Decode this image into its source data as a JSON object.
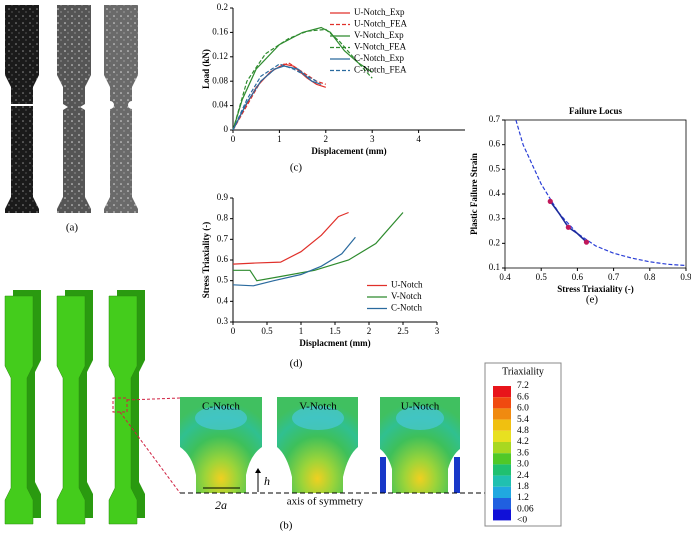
{
  "chart_data": [
    {
      "type": "line",
      "xlabel": "Displacement (mm)",
      "ylabel": "Load (kN)",
      "xlim": [
        0,
        5
      ],
      "xticks": [
        0,
        1,
        2,
        3,
        4
      ],
      "ylim": [
        0,
        0.2
      ],
      "yticks": [
        0,
        0.04,
        0.08,
        0.12,
        0.16,
        0.2
      ],
      "legend": "upper right",
      "series": [
        {
          "name": "U-Notch_Exp",
          "color": "#e0302a",
          "style": "solid",
          "x": [
            0,
            0.2,
            0.5,
            0.8,
            1.1,
            1.3,
            1.6,
            1.8,
            2.0
          ],
          "values": [
            0,
            0.03,
            0.07,
            0.095,
            0.108,
            0.105,
            0.085,
            0.075,
            0.07
          ]
        },
        {
          "name": "U-Notch_FEA",
          "color": "#e0302a",
          "style": "dashed",
          "x": [
            0,
            0.3,
            0.6,
            0.9,
            1.2,
            1.5,
            1.8,
            2.0
          ],
          "values": [
            0,
            0.04,
            0.08,
            0.1,
            0.11,
            0.095,
            0.08,
            0.075
          ]
        },
        {
          "name": "V-Notch_Exp",
          "color": "#2e8b2e",
          "style": "solid",
          "x": [
            0,
            0.2,
            0.5,
            1.0,
            1.5,
            1.9,
            2.1,
            2.4,
            2.7,
            3.0
          ],
          "values": [
            0,
            0.05,
            0.1,
            0.14,
            0.16,
            0.168,
            0.16,
            0.13,
            0.11,
            0.095
          ]
        },
        {
          "name": "V-Notch_FEA",
          "color": "#2e8b2e",
          "style": "dashed",
          "x": [
            0,
            0.3,
            0.7,
            1.2,
            1.6,
            2.0,
            2.3,
            2.7,
            3.0
          ],
          "values": [
            0,
            0.08,
            0.125,
            0.15,
            0.162,
            0.165,
            0.145,
            0.11,
            0.085
          ]
        },
        {
          "name": "C-Notch_Exp",
          "color": "#2a6a9e",
          "style": "solid",
          "x": [
            0,
            0.3,
            0.6,
            0.9,
            1.1,
            1.4,
            1.7,
            1.9
          ],
          "values": [
            0,
            0.045,
            0.08,
            0.1,
            0.105,
            0.1,
            0.08,
            0.075
          ]
        },
        {
          "name": "C-Notch_FEA",
          "color": "#2a6a9e",
          "style": "dashed",
          "x": [
            0,
            0.3,
            0.6,
            1.0,
            1.3,
            1.6,
            1.8
          ],
          "values": [
            0,
            0.05,
            0.088,
            0.108,
            0.1,
            0.088,
            0.08
          ]
        }
      ]
    },
    {
      "type": "line",
      "xlabel": "Displacment (mm)",
      "ylabel": "Stress Triaxiality (-)",
      "xlim": [
        0,
        3
      ],
      "xticks": [
        0,
        0.5,
        1,
        1.5,
        2,
        2.5,
        3
      ],
      "ylim": [
        0.3,
        0.9
      ],
      "yticks": [
        0.3,
        0.4,
        0.5,
        0.6,
        0.7,
        0.8,
        0.9
      ],
      "legend": "lower right",
      "series": [
        {
          "name": "U-Notch",
          "color": "#e0302a",
          "style": "solid",
          "x": [
            0,
            0.3,
            0.7,
            1.0,
            1.3,
            1.55,
            1.7
          ],
          "values": [
            0.58,
            0.585,
            0.59,
            0.64,
            0.72,
            0.81,
            0.83
          ]
        },
        {
          "name": "V-Notch",
          "color": "#2e8b2e",
          "style": "solid",
          "x": [
            0,
            0.25,
            0.35,
            0.7,
            1.2,
            1.7,
            2.1,
            2.5
          ],
          "values": [
            0.55,
            0.55,
            0.5,
            0.52,
            0.55,
            0.6,
            0.68,
            0.83
          ]
        },
        {
          "name": "C-Notch",
          "color": "#2a6a9e",
          "style": "solid",
          "x": [
            0,
            0.3,
            0.6,
            1.0,
            1.3,
            1.6,
            1.8
          ],
          "values": [
            0.48,
            0.475,
            0.5,
            0.53,
            0.57,
            0.63,
            0.71
          ]
        }
      ]
    },
    {
      "type": "line",
      "title": "Failure Locus",
      "xlabel": "Stress Triaxiality (-)",
      "ylabel": "Plastic Failure Strain",
      "xlim": [
        0.4,
        0.9
      ],
      "xticks": [
        0.4,
        0.5,
        0.6,
        0.7,
        0.8,
        0.9
      ],
      "ylim": [
        0.1,
        0.7
      ],
      "yticks": [
        0.1,
        0.2,
        0.3,
        0.4,
        0.5,
        0.6,
        0.7
      ],
      "frame": "box",
      "series": [
        {
          "color": "#2b3fd6",
          "style": "dashed",
          "x": [
            0.43,
            0.45,
            0.5,
            0.55,
            0.6,
            0.65,
            0.7,
            0.75,
            0.8,
            0.85,
            0.9
          ],
          "values": [
            0.7,
            0.6,
            0.44,
            0.32,
            0.24,
            0.19,
            0.16,
            0.14,
            0.125,
            0.115,
            0.11
          ]
        },
        {
          "color": "#1c2a9c",
          "style": "solid",
          "x": [
            0.525,
            0.55,
            0.575,
            0.6,
            0.625
          ],
          "values": [
            0.37,
            0.32,
            0.265,
            0.24,
            0.205
          ]
        },
        {
          "color": "#c0185a",
          "style": "points",
          "x": [
            0.525,
            0.575,
            0.625
          ],
          "values": [
            0.37,
            0.265,
            0.205
          ]
        }
      ]
    }
  ],
  "figure": {
    "labels": [
      "(a)",
      "(b)",
      "(c)",
      "(d)",
      "(e)"
    ],
    "notches": [
      "C-Notch",
      "V-Notch",
      "U-Notch"
    ],
    "h": "h",
    "width": "2a",
    "axis": "axis of symmetry",
    "colorbar": {
      "title": "Triaxiality",
      "labels": [
        "7.2",
        "6.6",
        "6.0",
        "5.4",
        "4.8",
        "4.2",
        "3.6",
        "3.0",
        "2.4",
        "1.8",
        "1.2",
        "0.06",
        "<0"
      ]
    }
  }
}
